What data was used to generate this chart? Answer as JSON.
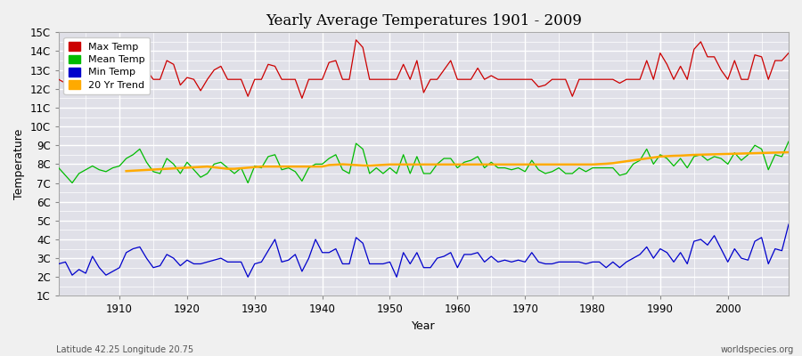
{
  "title": "Yearly Average Temperatures 1901 - 2009",
  "xlabel": "Year",
  "ylabel": "Temperature",
  "footnote_left": "Latitude 42.25 Longitude 20.75",
  "footnote_right": "worldspecies.org",
  "start_year": 1901,
  "end_year": 2009,
  "yticks": [
    1,
    2,
    3,
    4,
    5,
    6,
    7,
    8,
    9,
    10,
    11,
    12,
    13,
    14,
    15
  ],
  "ytick_labels": [
    "1C",
    "2C",
    "3C",
    "4C",
    "5C",
    "6C",
    "7C",
    "8C",
    "9C",
    "10C",
    "11C",
    "12C",
    "13C",
    "14C",
    "15C"
  ],
  "xticks": [
    1910,
    1920,
    1930,
    1940,
    1950,
    1960,
    1970,
    1980,
    1990,
    2000
  ],
  "ylim": [
    1,
    15
  ],
  "xlim": [
    1901,
    2009
  ],
  "fig_bg_color": "#f0f0f0",
  "plot_bg_color": "#e0e0e8",
  "grid_color": "#ffffff",
  "max_temp_color": "#cc0000",
  "mean_temp_color": "#00bb00",
  "min_temp_color": "#0000cc",
  "trend_color": "#ffaa00",
  "legend_labels": [
    "Max Temp",
    "Mean Temp",
    "Min Temp",
    "20 Yr Trend"
  ],
  "max_temp": [
    12.5,
    12.3,
    11.9,
    12.5,
    12.5,
    13.1,
    12.5,
    12.2,
    12.5,
    12.5,
    12.5,
    12.6,
    13.3,
    13.0,
    12.5,
    12.5,
    13.5,
    13.3,
    12.2,
    12.6,
    12.5,
    11.9,
    12.5,
    13.0,
    13.2,
    12.5,
    12.5,
    12.5,
    11.6,
    12.5,
    12.5,
    13.3,
    13.2,
    12.5,
    12.5,
    12.5,
    11.5,
    12.5,
    12.5,
    12.5,
    13.4,
    13.5,
    12.5,
    12.5,
    14.6,
    14.2,
    12.5,
    12.5,
    12.5,
    12.5,
    12.5,
    13.3,
    12.5,
    13.5,
    11.8,
    12.5,
    12.5,
    13.0,
    13.5,
    12.5,
    12.5,
    12.5,
    13.1,
    12.5,
    12.7,
    12.5,
    12.5,
    12.5,
    12.5,
    12.5,
    12.5,
    12.1,
    12.2,
    12.5,
    12.5,
    12.5,
    11.6,
    12.5,
    12.5,
    12.5,
    12.5,
    12.5,
    12.5,
    12.3,
    12.5,
    12.5,
    12.5,
    13.5,
    12.5,
    13.9,
    13.3,
    12.5,
    13.2,
    12.5,
    14.1,
    14.5,
    13.7,
    13.7,
    13.0,
    12.5,
    13.5,
    12.5,
    12.5,
    13.8,
    13.7,
    12.5,
    13.5,
    13.5,
    13.9
  ],
  "mean_temp": [
    7.8,
    7.4,
    7.0,
    7.5,
    7.7,
    7.9,
    7.7,
    7.6,
    7.8,
    7.9,
    8.3,
    8.5,
    8.8,
    8.1,
    7.6,
    7.5,
    8.3,
    8.0,
    7.5,
    8.1,
    7.7,
    7.3,
    7.5,
    8.0,
    8.1,
    7.8,
    7.5,
    7.8,
    7.0,
    7.9,
    7.8,
    8.4,
    8.5,
    7.7,
    7.8,
    7.6,
    7.1,
    7.8,
    8.0,
    8.0,
    8.3,
    8.5,
    7.7,
    7.5,
    9.1,
    8.8,
    7.5,
    7.8,
    7.5,
    7.8,
    7.5,
    8.5,
    7.5,
    8.4,
    7.5,
    7.5,
    8.0,
    8.3,
    8.3,
    7.8,
    8.1,
    8.2,
    8.4,
    7.8,
    8.1,
    7.8,
    7.8,
    7.7,
    7.8,
    7.6,
    8.2,
    7.7,
    7.5,
    7.6,
    7.8,
    7.5,
    7.5,
    7.8,
    7.6,
    7.8,
    7.8,
    7.8,
    7.8,
    7.4,
    7.5,
    8.0,
    8.2,
    8.8,
    8.0,
    8.5,
    8.3,
    7.9,
    8.3,
    7.8,
    8.4,
    8.5,
    8.2,
    8.4,
    8.3,
    8.0,
    8.6,
    8.2,
    8.5,
    9.0,
    8.8,
    7.7,
    8.5,
    8.4,
    9.2
  ],
  "min_temp": [
    2.7,
    2.8,
    2.1,
    2.4,
    2.2,
    3.1,
    2.5,
    2.1,
    2.3,
    2.5,
    3.3,
    3.5,
    3.6,
    3.0,
    2.5,
    2.6,
    3.2,
    3.0,
    2.6,
    2.9,
    2.7,
    2.7,
    2.8,
    2.9,
    3.0,
    2.8,
    2.8,
    2.8,
    2.0,
    2.7,
    2.8,
    3.4,
    4.0,
    2.8,
    2.9,
    3.2,
    2.3,
    3.0,
    4.0,
    3.3,
    3.3,
    3.5,
    2.7,
    2.7,
    4.1,
    3.8,
    2.7,
    2.7,
    2.7,
    2.8,
    2.0,
    3.3,
    2.7,
    3.3,
    2.5,
    2.5,
    3.0,
    3.1,
    3.3,
    2.5,
    3.2,
    3.2,
    3.3,
    2.8,
    3.1,
    2.8,
    2.9,
    2.8,
    2.9,
    2.8,
    3.3,
    2.8,
    2.7,
    2.7,
    2.8,
    2.8,
    2.8,
    2.8,
    2.7,
    2.8,
    2.8,
    2.5,
    2.8,
    2.5,
    2.8,
    3.0,
    3.2,
    3.6,
    3.0,
    3.5,
    3.3,
    2.8,
    3.3,
    2.7,
    3.9,
    4.0,
    3.7,
    4.2,
    3.5,
    2.8,
    3.5,
    3.0,
    2.9,
    3.9,
    4.1,
    2.7,
    3.5,
    3.4,
    4.8
  ],
  "trend_start_year": 1911,
  "trend": [
    7.63,
    7.65,
    7.67,
    7.69,
    7.71,
    7.73,
    7.75,
    7.77,
    7.79,
    7.81,
    7.83,
    7.85,
    7.87,
    7.83,
    7.79,
    7.75,
    7.75,
    7.78,
    7.81,
    7.84,
    7.87,
    7.87,
    7.87,
    7.87,
    7.87,
    7.87,
    7.87,
    7.87,
    7.87,
    7.87,
    7.95,
    7.97,
    7.99,
    7.97,
    7.95,
    7.93,
    7.92,
    7.94,
    7.96,
    7.98,
    7.98,
    7.98,
    7.98,
    7.98,
    7.98,
    7.98,
    7.98,
    7.98,
    7.98,
    7.98,
    7.98,
    7.98,
    7.98,
    7.98,
    7.98,
    7.98,
    7.98,
    7.98,
    7.98,
    7.98,
    7.98,
    7.98,
    7.98,
    7.98,
    7.98,
    7.98,
    7.98,
    7.98,
    7.98,
    7.98,
    8.0,
    8.02,
    8.05,
    8.1,
    8.15,
    8.2,
    8.25,
    8.3,
    8.35,
    8.4,
    8.42,
    8.44,
    8.45,
    8.47,
    8.49,
    8.5,
    8.51,
    8.52,
    8.53,
    8.54,
    8.55,
    8.56,
    8.57,
    8.58,
    8.59,
    8.6,
    8.61,
    8.62,
    8.63
  ]
}
